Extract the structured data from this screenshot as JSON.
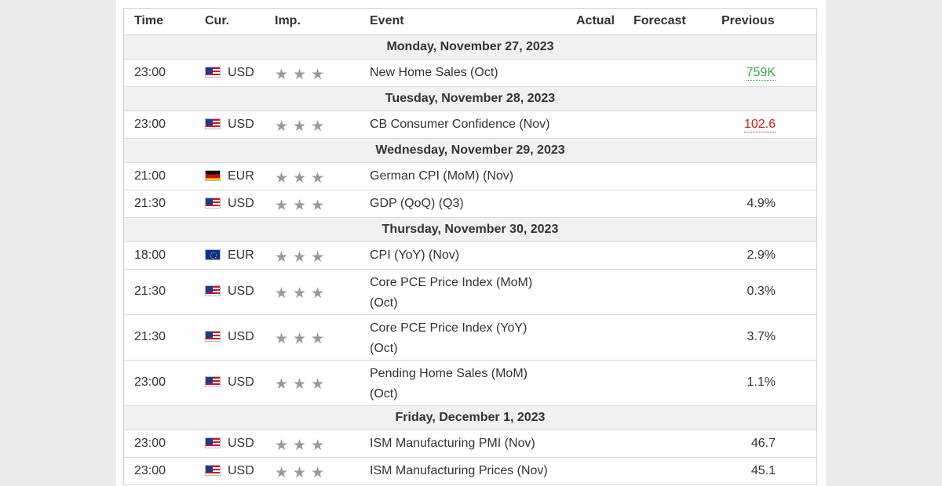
{
  "header": {
    "time": "Time",
    "currency": "Cur.",
    "importance": "Imp.",
    "event": "Event",
    "actual": "Actual",
    "forecast": "Forecast",
    "previous": "Previous"
  },
  "days": [
    {
      "date": "Monday, November 27, 2023",
      "events": [
        {
          "time": "23:00",
          "flag": "us-flag-icon",
          "currency": "USD",
          "importance": 3,
          "event": "New Home Sales (Oct)",
          "actual": "",
          "forecast": "",
          "previous": "759K",
          "previous_color": "#2daa3f"
        }
      ]
    },
    {
      "date": "Tuesday, November 28, 2023",
      "events": [
        {
          "time": "23:00",
          "flag": "us-flag-icon",
          "currency": "USD",
          "importance": 3,
          "event": "CB Consumer Confidence (Nov)",
          "actual": "",
          "forecast": "",
          "previous": "102.6",
          "previous_color": "#d91f1f"
        }
      ]
    },
    {
      "date": "Wednesday, November 29, 2023",
      "events": [
        {
          "time": "21:00",
          "flag": "de-flag-icon",
          "currency": "EUR",
          "importance": 3,
          "event": "German CPI (MoM) (Nov)",
          "actual": "",
          "forecast": "",
          "previous": ""
        },
        {
          "time": "21:30",
          "flag": "us-flag-icon",
          "currency": "USD",
          "importance": 3,
          "event": "GDP (QoQ) (Q3)",
          "actual": "",
          "forecast": "",
          "previous": "4.9%"
        }
      ]
    },
    {
      "date": "Thursday, November 30, 2023",
      "events": [
        {
          "time": "18:00",
          "flag": "eu-flag-icon",
          "currency": "EUR",
          "importance": 3,
          "event": "CPI (YoY) (Nov)",
          "actual": "",
          "forecast": "",
          "previous": "2.9%"
        },
        {
          "time": "21:30",
          "flag": "us-flag-icon",
          "currency": "USD",
          "importance": 3,
          "event": "Core PCE Price Index (MoM) (Oct)",
          "actual": "",
          "forecast": "",
          "previous": "0.3%"
        },
        {
          "time": "21:30",
          "flag": "us-flag-icon",
          "currency": "USD",
          "importance": 3,
          "event": "Core PCE Price Index (YoY) (Oct)",
          "actual": "",
          "forecast": "",
          "previous": "3.7%"
        },
        {
          "time": "23:00",
          "flag": "us-flag-icon",
          "currency": "USD",
          "importance": 3,
          "event": "Pending Home Sales (MoM) (Oct)",
          "actual": "",
          "forecast": "",
          "previous": "1.1%"
        }
      ]
    },
    {
      "date": "Friday, December 1, 2023",
      "events": [
        {
          "time": "23:00",
          "flag": "us-flag-icon",
          "currency": "USD",
          "importance": 3,
          "event": "ISM Manufacturing PMI (Nov)",
          "actual": "",
          "forecast": "",
          "previous": "46.7"
        },
        {
          "time": "23:00",
          "flag": "us-flag-icon",
          "currency": "USD",
          "importance": 3,
          "event": "ISM Manufacturing Prices (Nov)",
          "actual": "",
          "forecast": "",
          "previous": "45.1"
        }
      ]
    }
  ]
}
